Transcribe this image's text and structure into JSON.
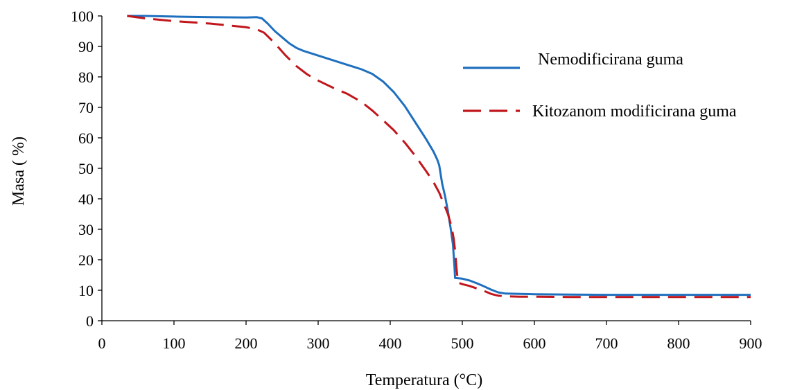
{
  "chart_data": {
    "type": "line",
    "title": "",
    "xlabel": "Temperatura (°C)",
    "ylabel": "Masa ( %)",
    "xlim": [
      0,
      900
    ],
    "ylim": [
      0,
      100
    ],
    "xticks": [
      "0",
      "100",
      "200",
      "300",
      "400",
      "500",
      "600",
      "700",
      "800",
      "900"
    ],
    "yticks": [
      "0",
      "10",
      "20",
      "30",
      "40",
      "50",
      "60",
      "70",
      "80",
      "90",
      "100"
    ],
    "grid": false,
    "legend_position": "top-right",
    "series": [
      {
        "name": "Nemodificirana guma",
        "color": "#1f6fbf",
        "style": "solid",
        "x": [
          35,
          60,
          100,
          150,
          200,
          215,
          222,
          230,
          240,
          250,
          260,
          270,
          280,
          300,
          320,
          340,
          360,
          375,
          390,
          405,
          420,
          435,
          450,
          460,
          465,
          468,
          472,
          476,
          480,
          484,
          487,
          489,
          490,
          491,
          500,
          510,
          520,
          530,
          540,
          550,
          560,
          580,
          600,
          650,
          700,
          750,
          800,
          850,
          900
        ],
        "y": [
          100,
          100,
          99.8,
          99.6,
          99.5,
          99.6,
          99.2,
          97.5,
          95,
          93,
          91,
          89.5,
          88.5,
          87,
          85.5,
          84,
          82.5,
          81,
          78.5,
          75,
          70.5,
          65,
          59.5,
          55.5,
          53,
          51,
          45,
          41,
          36,
          30,
          25,
          18,
          14,
          14,
          13.8,
          13.2,
          12.3,
          11.3,
          10.2,
          9.3,
          8.9,
          8.8,
          8.7,
          8.6,
          8.5,
          8.5,
          8.5,
          8.5,
          8.5
        ]
      },
      {
        "name": "Kitozanom modificirana guma",
        "color": "#c0161c",
        "style": "dashed",
        "x": [
          35,
          60,
          100,
          150,
          200,
          215,
          225,
          240,
          255,
          270,
          285,
          300,
          320,
          340,
          360,
          375,
          390,
          405,
          420,
          435,
          450,
          460,
          468,
          475,
          480,
          485,
          488,
          490,
          492,
          494,
          500,
          510,
          520,
          530,
          540,
          550,
          560,
          580,
          600,
          650,
          700,
          750,
          800,
          850,
          900
        ],
        "y": [
          100,
          99.2,
          98.3,
          97.5,
          96.3,
          95.6,
          94.5,
          91,
          87,
          83.5,
          80.8,
          78.8,
          76.5,
          74.5,
          71.8,
          69,
          65.8,
          62.5,
          58.5,
          54,
          49,
          45.5,
          42,
          38,
          35,
          31,
          27,
          23,
          17,
          12.5,
          12,
          11.4,
          10.6,
          9.8,
          8.8,
          8.2,
          8,
          7.9,
          7.9,
          7.8,
          7.8,
          7.8,
          7.8,
          7.8,
          7.8
        ]
      }
    ]
  }
}
